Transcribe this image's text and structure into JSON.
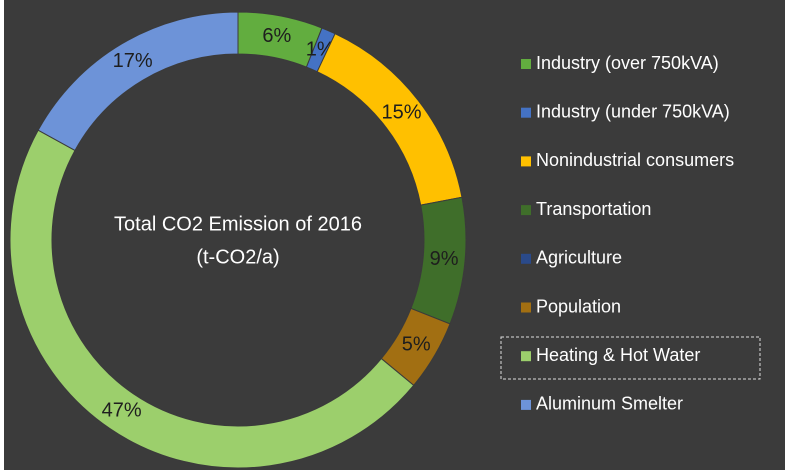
{
  "chart_data": {
    "type": "donut",
    "title": "Total CO2 Emission of 2016",
    "subtitle": "(t-CO2/a)",
    "categories": [
      "Industry (over 750kVA)",
      "Industry (under 750kVA)",
      "Nonindustrial consumers",
      "Transportation",
      "Agriculture",
      "Population",
      "Heating & Hot Water",
      "Aluminum Smelter"
    ],
    "values": [
      6,
      1,
      15,
      9,
      0,
      5,
      47,
      17
    ],
    "value_labels": [
      "6%",
      "1%",
      "15%",
      "9%",
      null,
      "5%",
      "47%",
      "17%"
    ],
    "colors": [
      "#62ad3f",
      "#4472c4",
      "#ffc000",
      "#3f6e2a",
      "#2a4a8a",
      "#a26f12",
      "#9ccf6c",
      "#6d93d8"
    ],
    "legend": "right"
  }
}
